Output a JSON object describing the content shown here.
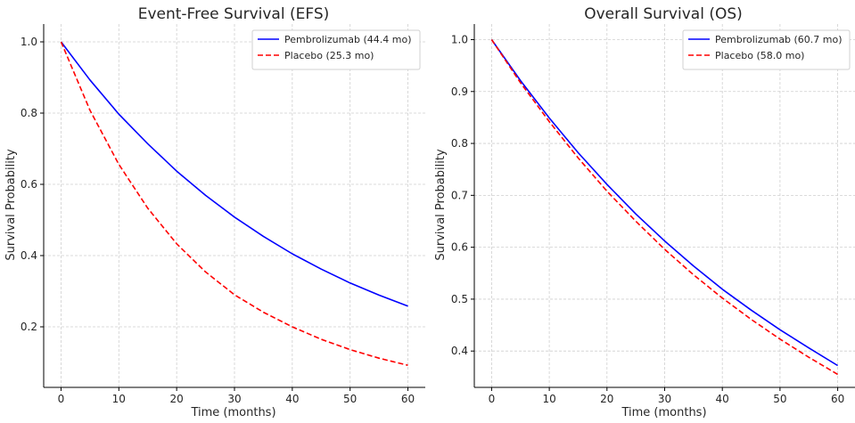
{
  "chart_data": [
    {
      "type": "line",
      "title": "Event-Free Survival (EFS)",
      "xlabel": "Time (months)",
      "ylabel": "Survival Probability",
      "xlim": [
        -3,
        63
      ],
      "ylim": [
        0.03,
        1.05
      ],
      "xticks": [
        0,
        10,
        20,
        30,
        40,
        50,
        60
      ],
      "yticks": [
        0.2,
        0.4,
        0.6,
        0.8,
        1.0
      ],
      "ytick_labels": [
        "0.2",
        "0.4",
        "0.6",
        "0.8",
        "1.0"
      ],
      "grid": true,
      "legend_position": "top-right",
      "x": [
        0,
        5,
        10,
        15,
        20,
        25,
        30,
        35,
        40,
        45,
        50,
        55,
        60
      ],
      "series": [
        {
          "name": "Pembrolizumab (44.4 mo)",
          "color": "#0000ff",
          "dash": "solid",
          "values": [
            1.0,
            0.893,
            0.797,
            0.714,
            0.637,
            0.569,
            0.508,
            0.454,
            0.405,
            0.362,
            0.323,
            0.289,
            0.258
          ]
        },
        {
          "name": "Placebo (25.3 mo)",
          "color": "#ff0000",
          "dash": "dashed",
          "values": [
            1.0,
            0.808,
            0.656,
            0.533,
            0.433,
            0.354,
            0.29,
            0.241,
            0.2,
            0.165,
            0.136,
            0.112,
            0.092
          ]
        }
      ]
    },
    {
      "type": "line",
      "title": "Overall Survival (OS)",
      "xlabel": "Time (months)",
      "ylabel": "Survival Probability",
      "xlim": [
        -3,
        63
      ],
      "ylim": [
        0.33,
        1.03
      ],
      "xticks": [
        0,
        10,
        20,
        30,
        40,
        50,
        60
      ],
      "yticks": [
        0.4,
        0.5,
        0.6,
        0.7,
        0.8,
        0.9,
        1.0
      ],
      "ytick_labels": [
        "0.4",
        "0.5",
        "0.6",
        "0.7",
        "0.8",
        "0.9",
        "1.0"
      ],
      "grid": true,
      "legend_position": "top-right",
      "x": [
        0,
        5,
        10,
        15,
        20,
        25,
        30,
        35,
        40,
        45,
        50,
        55,
        60
      ],
      "series": [
        {
          "name": "Pembrolizumab (60.7 mo)",
          "color": "#0000ff",
          "dash": "solid",
          "values": [
            1.0,
            0.921,
            0.849,
            0.782,
            0.721,
            0.664,
            0.612,
            0.564,
            0.519,
            0.479,
            0.441,
            0.406,
            0.372
          ]
        },
        {
          "name": "Placebo (58.0 mo)",
          "color": "#ff0000",
          "dash": "dashed",
          "values": [
            1.0,
            0.917,
            0.842,
            0.772,
            0.708,
            0.65,
            0.596,
            0.547,
            0.502,
            0.461,
            0.423,
            0.388,
            0.355
          ]
        }
      ]
    }
  ]
}
